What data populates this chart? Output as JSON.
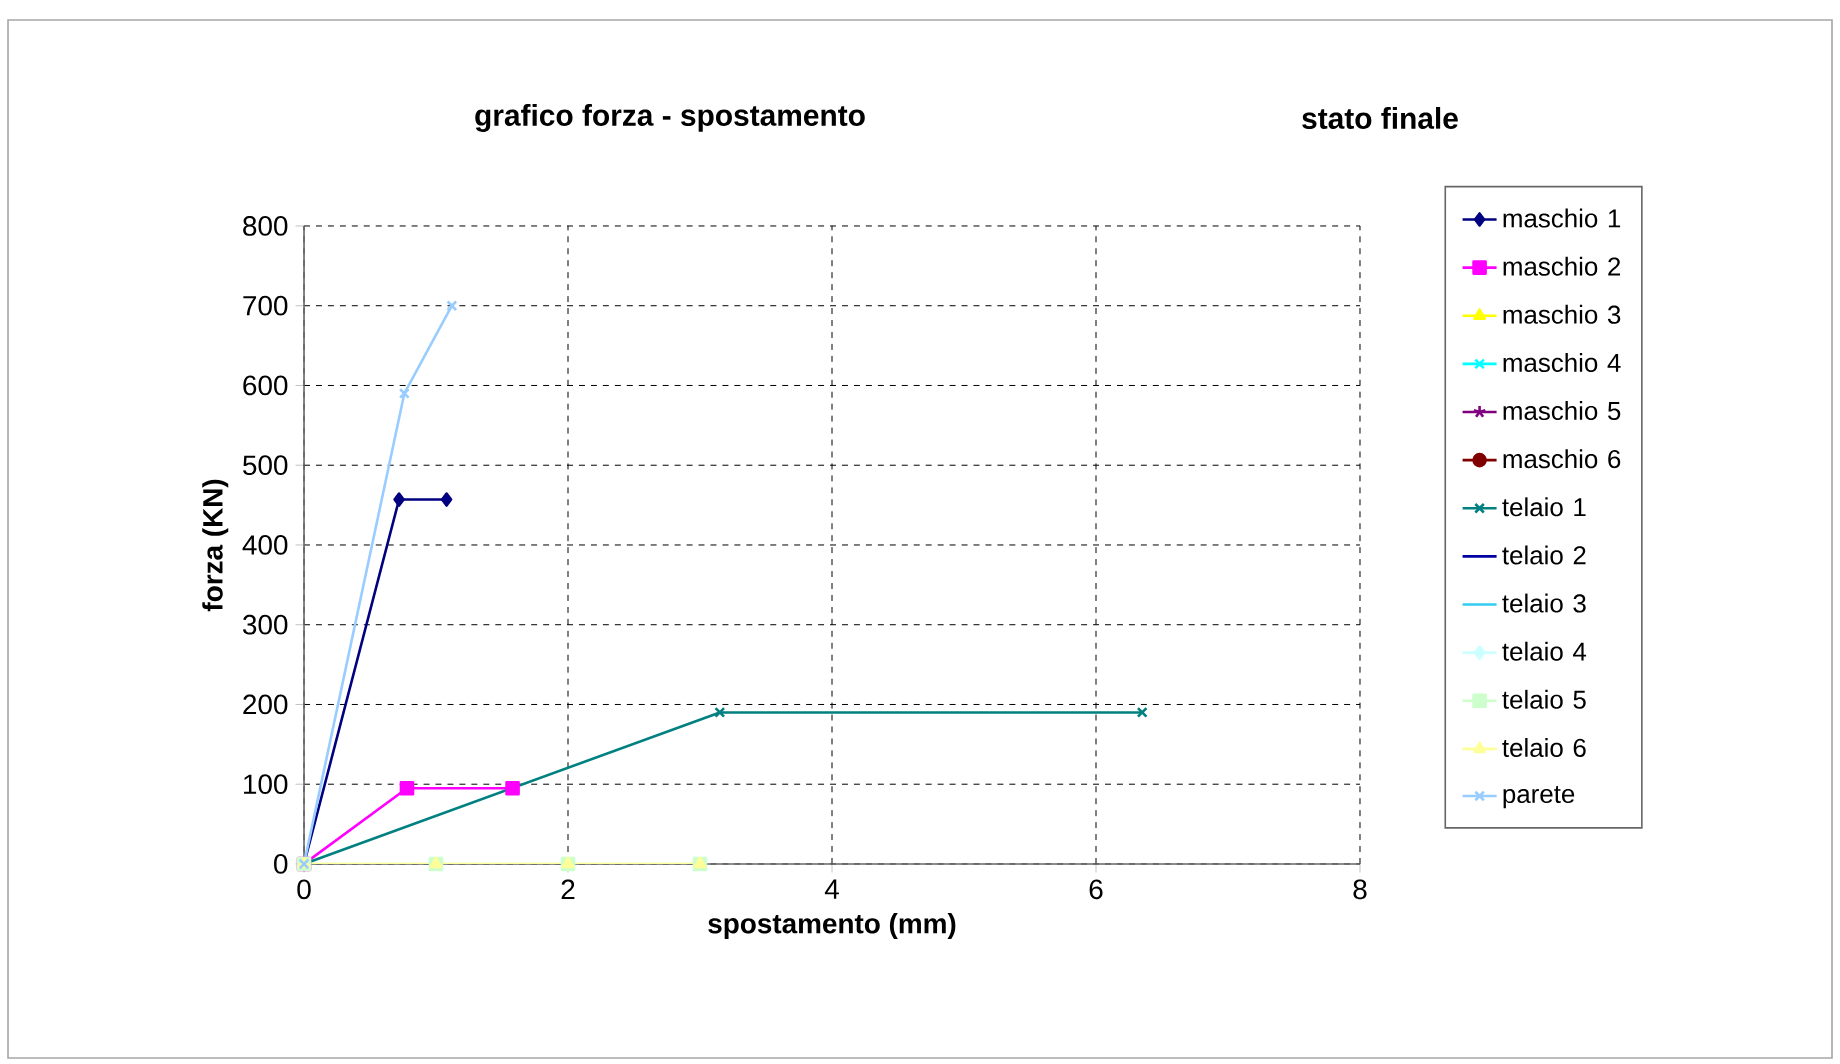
{
  "chart_data": {
    "type": "line",
    "title": "grafico forza - spostamento",
    "subtitle": "stato finale",
    "xlabel": "spostamento (mm)",
    "ylabel": "forza (KN)",
    "xlim": [
      0,
      8
    ],
    "xticks": [
      0,
      2,
      4,
      6,
      8
    ],
    "ylim": [
      0,
      800
    ],
    "yticks": [
      0,
      100,
      200,
      300,
      400,
      500,
      600,
      700,
      800
    ],
    "grid": true,
    "legend": "right",
    "series": [
      {
        "name": "maschio 1",
        "color": "#000080",
        "marker": "diamond",
        "x": [
          0,
          0.72,
          1.08
        ],
        "values": [
          0,
          457,
          457
        ]
      },
      {
        "name": "maschio 2",
        "color": "#ff00ff",
        "marker": "square",
        "x": [
          0,
          0.78,
          1.58
        ],
        "values": [
          0,
          95,
          95
        ]
      },
      {
        "name": "maschio 3",
        "color": "#ffff00",
        "marker": "triangle"
      },
      {
        "name": "maschio 4",
        "color": "#00ffff",
        "marker": "cross"
      },
      {
        "name": "maschio 5",
        "color": "#800080",
        "marker": "star"
      },
      {
        "name": "maschio 6",
        "color": "#800000",
        "marker": "circle"
      },
      {
        "name": "telaio 1",
        "color": "#008080",
        "marker": "cross",
        "x": [
          0,
          3.15,
          6.35
        ],
        "values": [
          0,
          190,
          190
        ]
      },
      {
        "name": "telaio 2",
        "color": "#0000a0",
        "marker": "none"
      },
      {
        "name": "telaio 3",
        "color": "#33ccee",
        "marker": "none"
      },
      {
        "name": "telaio 4",
        "color": "#ccffff",
        "marker": "diamond"
      },
      {
        "name": "telaio 5",
        "color": "#ccffcc",
        "marker": "square",
        "x": [
          0,
          1,
          2,
          3
        ],
        "values": [
          0,
          0,
          0,
          0
        ]
      },
      {
        "name": "telaio 6",
        "color": "#ffff99",
        "marker": "triangle",
        "x": [
          0,
          1,
          2,
          3
        ],
        "values": [
          0,
          0,
          0,
          0
        ]
      },
      {
        "name": "parete",
        "color": "#99ccff",
        "marker": "cross",
        "x": [
          0,
          0.76,
          1.12
        ],
        "values": [
          0,
          590,
          700
        ]
      }
    ]
  }
}
